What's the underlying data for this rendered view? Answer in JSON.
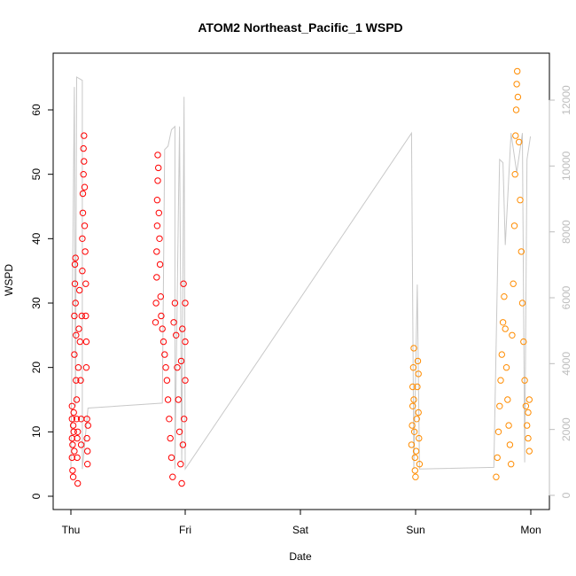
{
  "chart_data": {
    "type": "scatter",
    "title": "ATOM2 Northeast_Pacific_1 WSPD",
    "xlabel": "Date",
    "ylabel": "WSPD",
    "x_ticks": [
      "Thu",
      "Fri",
      "Sat",
      "Sun",
      "Mon"
    ],
    "x_range_days": [
      0,
      4.2
    ],
    "ylim": [
      0,
      68
    ],
    "y_ticks": [
      0,
      10,
      20,
      30,
      40,
      50,
      60
    ],
    "y2_ticks": [
      0,
      2000,
      4000,
      6000,
      8000,
      10000,
      12000
    ],
    "y2lim": [
      0,
      13000
    ],
    "colors": {
      "series_1": "#ff0000",
      "series_2": "#ff8c00",
      "line": "#c8c8c8"
    },
    "series": [
      {
        "marker": "open-circle",
        "color": "#ff0000",
        "points": [
          [
            0.01,
            6
          ],
          [
            0.01,
            9
          ],
          [
            0.01,
            12
          ],
          [
            0.01,
            14
          ],
          [
            0.015,
            4
          ],
          [
            0.015,
            8
          ],
          [
            0.02,
            11
          ],
          [
            0.02,
            3
          ],
          [
            0.025,
            10
          ],
          [
            0.025,
            13
          ],
          [
            0.03,
            7
          ],
          [
            0.03,
            22
          ],
          [
            0.03,
            28
          ],
          [
            0.035,
            33
          ],
          [
            0.035,
            36
          ],
          [
            0.04,
            37
          ],
          [
            0.04,
            30
          ],
          [
            0.045,
            25
          ],
          [
            0.045,
            18
          ],
          [
            0.05,
            15
          ],
          [
            0.05,
            12
          ],
          [
            0.055,
            9
          ],
          [
            0.055,
            6
          ],
          [
            0.06,
            2
          ],
          [
            0.06,
            10
          ],
          [
            0.065,
            20
          ],
          [
            0.07,
            26
          ],
          [
            0.075,
            32
          ],
          [
            0.08,
            24
          ],
          [
            0.085,
            18
          ],
          [
            0.09,
            12
          ],
          [
            0.09,
            8
          ],
          [
            0.095,
            28
          ],
          [
            0.1,
            35
          ],
          [
            0.1,
            40
          ],
          [
            0.105,
            44
          ],
          [
            0.105,
            47
          ],
          [
            0.11,
            50
          ],
          [
            0.11,
            54
          ],
          [
            0.115,
            56
          ],
          [
            0.115,
            52
          ],
          [
            0.12,
            48
          ],
          [
            0.12,
            42
          ],
          [
            0.125,
            38
          ],
          [
            0.13,
            33
          ],
          [
            0.13,
            28
          ],
          [
            0.135,
            24
          ],
          [
            0.135,
            20
          ],
          [
            0.14,
            12
          ],
          [
            0.14,
            9
          ],
          [
            0.145,
            7
          ],
          [
            0.145,
            5
          ],
          [
            0.15,
            11
          ],
          [
            0.74,
            27
          ],
          [
            0.745,
            30
          ],
          [
            0.75,
            34
          ],
          [
            0.75,
            38
          ],
          [
            0.755,
            42
          ],
          [
            0.755,
            46
          ],
          [
            0.76,
            49
          ],
          [
            0.76,
            53
          ],
          [
            0.765,
            51
          ],
          [
            0.77,
            44
          ],
          [
            0.775,
            40
          ],
          [
            0.78,
            36
          ],
          [
            0.785,
            31
          ],
          [
            0.79,
            28
          ],
          [
            0.8,
            26
          ],
          [
            0.81,
            24
          ],
          [
            0.82,
            22
          ],
          [
            0.83,
            20
          ],
          [
            0.84,
            18
          ],
          [
            0.85,
            15
          ],
          [
            0.86,
            12
          ],
          [
            0.87,
            9
          ],
          [
            0.88,
            6
          ],
          [
            0.89,
            3
          ],
          [
            0.9,
            27
          ],
          [
            0.91,
            30
          ],
          [
            0.92,
            25
          ],
          [
            0.93,
            20
          ],
          [
            0.94,
            15
          ],
          [
            0.95,
            10
          ],
          [
            0.96,
            5
          ],
          [
            0.97,
            2
          ],
          [
            0.98,
            8
          ],
          [
            0.99,
            12
          ],
          [
            1.0,
            18
          ],
          [
            1.0,
            24
          ],
          [
            1.0,
            30
          ],
          [
            0.985,
            33
          ],
          [
            0.975,
            26
          ],
          [
            0.965,
            21
          ]
        ]
      },
      {
        "marker": "open-circle",
        "color": "#ff8c00",
        "points": [
          [
            2.98,
            8
          ],
          [
            2.985,
            11
          ],
          [
            2.99,
            14
          ],
          [
            2.99,
            17
          ],
          [
            2.995,
            20
          ],
          [
            3.0,
            23
          ],
          [
            3.0,
            15
          ],
          [
            3.005,
            10
          ],
          [
            3.01,
            6
          ],
          [
            3.01,
            4
          ],
          [
            3.015,
            3
          ],
          [
            3.02,
            7
          ],
          [
            3.025,
            12
          ],
          [
            3.03,
            17
          ],
          [
            3.035,
            21
          ],
          [
            3.04,
            19
          ],
          [
            3.04,
            13
          ],
          [
            3.045,
            9
          ],
          [
            3.05,
            5
          ],
          [
            3.72,
            3
          ],
          [
            3.73,
            6
          ],
          [
            3.74,
            10
          ],
          [
            3.75,
            14
          ],
          [
            3.76,
            18
          ],
          [
            3.77,
            22
          ],
          [
            3.78,
            27
          ],
          [
            3.79,
            31
          ],
          [
            3.8,
            26
          ],
          [
            3.81,
            20
          ],
          [
            3.82,
            15
          ],
          [
            3.83,
            11
          ],
          [
            3.84,
            8
          ],
          [
            3.85,
            5
          ],
          [
            3.86,
            25
          ],
          [
            3.87,
            33
          ],
          [
            3.88,
            42
          ],
          [
            3.885,
            50
          ],
          [
            3.89,
            56
          ],
          [
            3.895,
            60
          ],
          [
            3.9,
            64
          ],
          [
            3.905,
            66
          ],
          [
            3.91,
            62
          ],
          [
            3.92,
            55
          ],
          [
            3.93,
            46
          ],
          [
            3.94,
            38
          ],
          [
            3.95,
            30
          ],
          [
            3.96,
            24
          ],
          [
            3.97,
            18
          ],
          [
            3.98,
            14
          ],
          [
            3.99,
            11
          ],
          [
            4.0,
            9
          ],
          [
            4.0,
            13
          ],
          [
            4.01,
            15
          ],
          [
            4.01,
            7
          ]
        ]
      }
    ],
    "line_series": {
      "axis": "right",
      "color": "#c8c8c8",
      "points": [
        [
          0.0,
          800
        ],
        [
          0.03,
          12400
        ],
        [
          0.04,
          2700
        ],
        [
          0.05,
          12700
        ],
        [
          0.1,
          12600
        ],
        [
          0.1,
          800
        ],
        [
          0.15,
          2650
        ],
        [
          0.8,
          2800
        ],
        [
          0.82,
          10500
        ],
        [
          0.85,
          10600
        ],
        [
          0.88,
          11100
        ],
        [
          0.91,
          11200
        ],
        [
          0.91,
          800
        ],
        [
          0.95,
          11200
        ],
        [
          0.97,
          1000
        ],
        [
          0.99,
          12100
        ],
        [
          1.0,
          800
        ],
        [
          2.98,
          11000
        ],
        [
          3.0,
          800
        ],
        [
          3.03,
          6400
        ],
        [
          3.05,
          800
        ],
        [
          3.7,
          850
        ],
        [
          3.75,
          10200
        ],
        [
          3.78,
          10100
        ],
        [
          3.8,
          7600
        ],
        [
          3.85,
          11000
        ],
        [
          3.9,
          9800
        ],
        [
          3.95,
          11000
        ],
        [
          3.97,
          1000
        ],
        [
          3.99,
          10200
        ],
        [
          4.02,
          10900
        ]
      ]
    }
  }
}
